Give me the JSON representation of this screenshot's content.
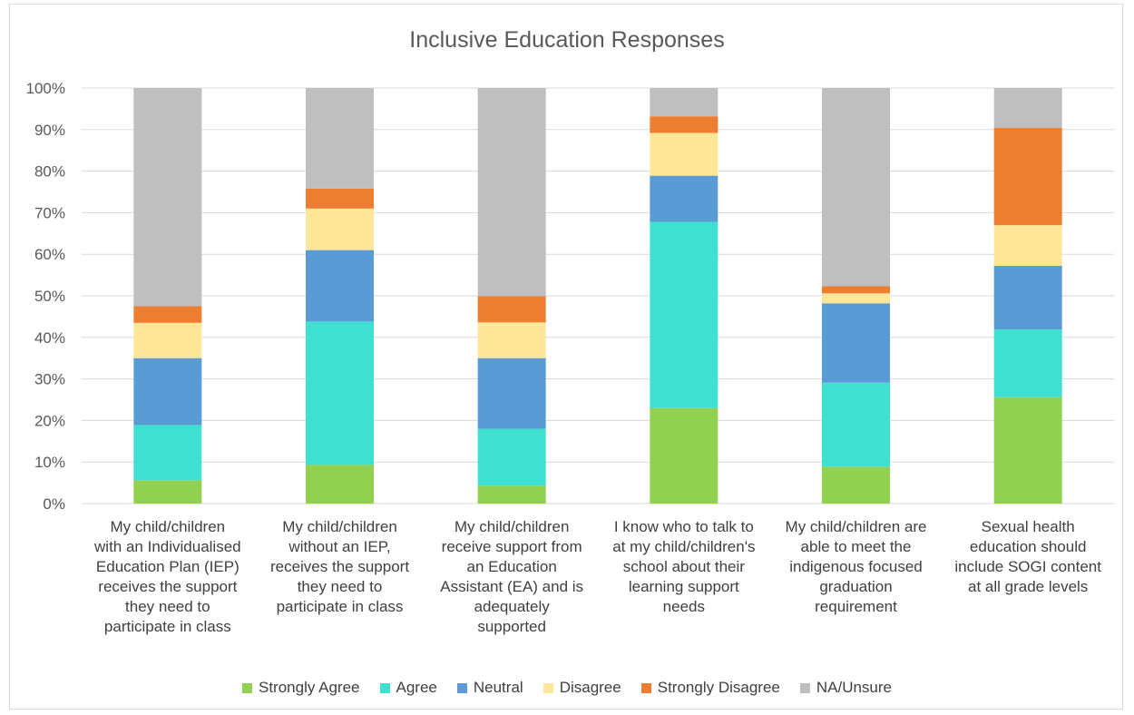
{
  "chart_data": {
    "type": "bar",
    "stacked": true,
    "title": "Inclusive Education Responses",
    "xlabel": "",
    "ylabel": "",
    "ylim": [
      0,
      100
    ],
    "yticks": [
      "0%",
      "10%",
      "20%",
      "30%",
      "40%",
      "50%",
      "60%",
      "70%",
      "80%",
      "90%",
      "100%"
    ],
    "grid": true,
    "legend_position": "bottom",
    "categories": [
      "My child/children with an Individualised Education Plan (IEP) receives the support they need to participate in class",
      "My child/children without an IEP, receives the support they need to participate in class",
      "My child/children receive support from an Education Assistant (EA) and is adequately supported",
      "I know who to talk to at my child/children's school about their learning support needs",
      "My child/children are able to meet the indigenous focused graduation requirement",
      "Sexual health education should include SOGI content at all grade levels"
    ],
    "category_lines": [
      [
        "My child/children",
        "with an Individualised",
        "Education Plan (IEP)",
        "receives the support",
        "they need to",
        "participate in class"
      ],
      [
        "My child/children",
        "without an IEP,",
        "receives the support",
        "they need to",
        "participate in class"
      ],
      [
        "My child/children",
        "receive support from",
        "an Education",
        "Assistant (EA) and is",
        "adequately",
        "supported"
      ],
      [
        "I know who to talk to",
        "at my child/children's",
        "school about their",
        "learning support",
        "needs"
      ],
      [
        "My child/children are",
        "able to meet the",
        "indigenous focused",
        "graduation",
        "requirement"
      ],
      [
        "Sexual health",
        "education should",
        "include SOGI content",
        "at all grade levels"
      ]
    ],
    "series": [
      {
        "name": "Strongly Agree",
        "color": "#92d050",
        "values": [
          5.6,
          9.3,
          4.3,
          23.0,
          8.9,
          25.6
        ]
      },
      {
        "name": "Agree",
        "color": "#40e0d0",
        "values": [
          13.3,
          34.5,
          13.7,
          44.8,
          20.2,
          16.3
        ]
      },
      {
        "name": "Neutral",
        "color": "#5b9bd5",
        "values": [
          16.1,
          17.2,
          17.0,
          11.1,
          19.1,
          15.3
        ]
      },
      {
        "name": "Disagree",
        "color": "#ffe699",
        "values": [
          8.5,
          10.0,
          8.6,
          10.3,
          2.4,
          9.8
        ]
      },
      {
        "name": "Strongly Disagree",
        "color": "#ed7d31",
        "values": [
          4.0,
          4.8,
          6.3,
          4.0,
          1.7,
          23.4
        ]
      },
      {
        "name": "NA/Unsure",
        "color": "#bfbfbf",
        "values": [
          52.5,
          24.2,
          50.1,
          6.8,
          47.7,
          9.6
        ]
      }
    ]
  }
}
